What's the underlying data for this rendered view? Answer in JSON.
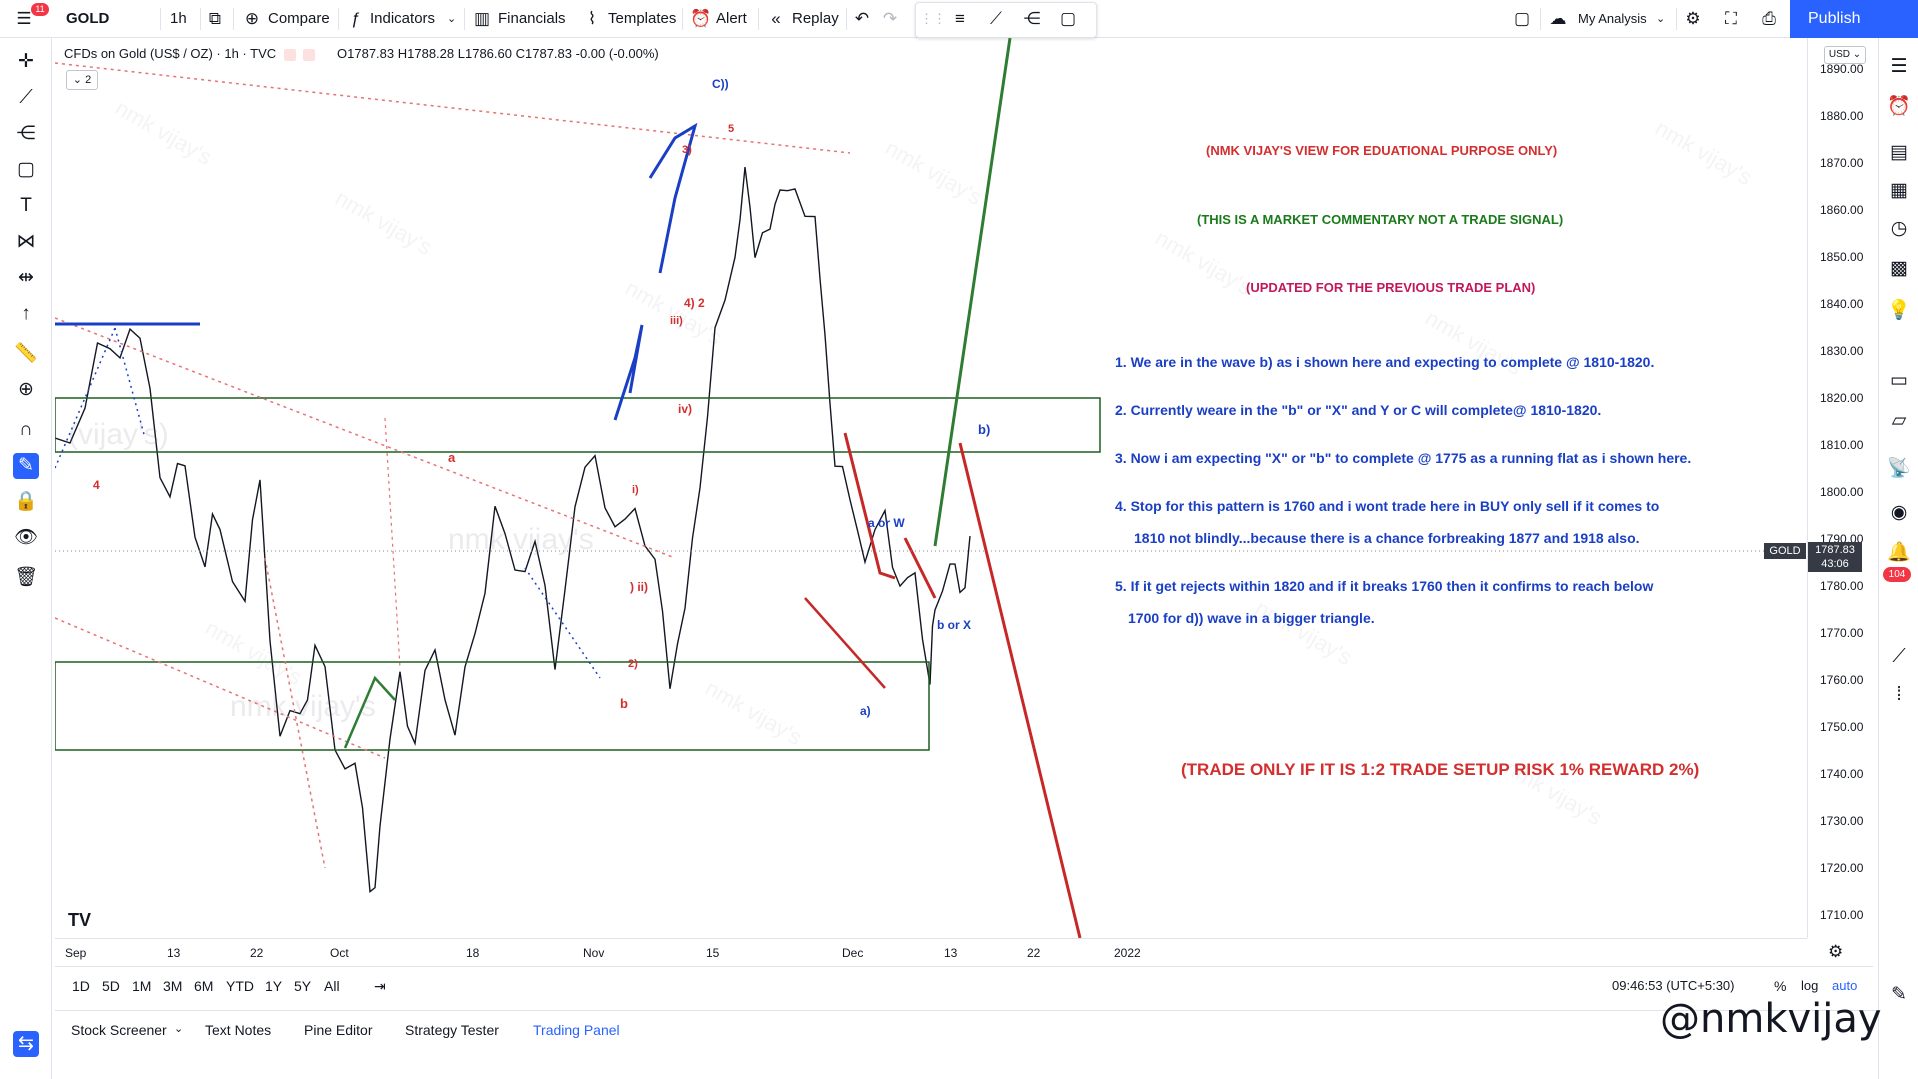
{
  "header": {
    "symbol": "GOLD",
    "interval": "1h",
    "menu_badge": "11",
    "compare_label": "Compare",
    "indicators_label": "Indicators",
    "financials_label": "Financials",
    "templates_label": "Templates",
    "alert_label": "Alert",
    "replay_label": "Replay",
    "layout_label": "My Analysis",
    "publish_label": "Publish"
  },
  "legend": {
    "title": "CFDs on Gold (US$ / OZ) · 1h · TVC",
    "open": "O1787.83",
    "high": "H1788.28",
    "low": "L1786.60",
    "close": "C1787.83",
    "change": "-0.00 (-0.00%)",
    "collapse": "2"
  },
  "price_scale": {
    "currency": "USD",
    "labels": [
      "1890.00",
      "1880.00",
      "1870.00",
      "1860.00",
      "1850.00",
      "1840.00",
      "1830.00",
      "1820.00",
      "1810.00",
      "1800.00",
      "1790.00",
      "1780.00",
      "1770.00",
      "1760.00",
      "1750.00",
      "1740.00",
      "1730.00",
      "1720.00",
      "1710.00"
    ],
    "current_symbol": "GOLD",
    "current_price": "1787.83",
    "countdown": "43:06"
  },
  "time_scale": {
    "labels": [
      "Sep",
      "13",
      "22",
      "Oct",
      "18",
      "Nov",
      "15",
      "Dec",
      "13",
      "22",
      "2022"
    ]
  },
  "range_bar": {
    "ranges": [
      "1D",
      "5D",
      "1M",
      "3M",
      "6M",
      "YTD",
      "1Y",
      "5Y",
      "All"
    ],
    "clock": "09:46:53 (UTC+5:30)",
    "percent": "%",
    "log": "log",
    "auto": "auto"
  },
  "bottom_panel": {
    "tabs": [
      "Stock Screener",
      "Text Notes",
      "Pine Editor",
      "Strategy Tester",
      "Trading Panel"
    ]
  },
  "right_toolbar": {
    "badge": "104"
  },
  "annotations": {
    "disclaimer1": "(NMK VIJAY'S VIEW FOR EDUATIONAL PURPOSE ONLY)",
    "disclaimer2": "(THIS IS A MARKET COMMENTARY NOT A TRADE SIGNAL)",
    "disclaimer3": "(UPDATED FOR THE PREVIOUS TRADE PLAN)",
    "point1": "1. We are in the wave b) as i shown here and expecting to complete @ 1810-1820.",
    "point2": "2. Currently weare in the \"b\" or \"X\" and Y or C will complete@ 1810-1820.",
    "point3": "3. Now i am expecting \"X\" or \"b\" to complete @ 1775 as a running flat as i shown here.",
    "point4a": "4. Stop for this pattern is 1760 and i wont trade here in BUY only sell if it comes to",
    "point4b": "1810 not blindly...because there is a chance forbreaking 1877 and 1918 also.",
    "point5a": "5. If it get rejects within 1820 and if it breaks 1760 then it confirms to reach below",
    "point5b": "1700 for d)) wave in a bigger triangle.",
    "trade_rule": "(TRADE ONLY IF IT IS 1:2 TRADE SETUP RISK 1% REWARD 2%)"
  },
  "wave_labels": {
    "c2": "C))",
    "w5": "5",
    "w3": "3)",
    "w4_2": "4) 2",
    "iii": "iii)",
    "iv": "iv)",
    "a": "a",
    "b": "b",
    "four": "4",
    "i": "i)",
    "ii": ") ii)",
    "two": "2)",
    "b_paren": "b)",
    "a_or_w": "a or W",
    "b_or_x": "b or X",
    "a_paren": "a)"
  },
  "watermark": {
    "text": "nmk vijay's",
    "big_handle": "@nmkvijay",
    "faint": "(vijay's)",
    "faint2": "nmk vijay's"
  },
  "colors": {
    "accent": "#2962ff",
    "green_box": "#1b5e20",
    "red_line": "#c62828",
    "blue_line": "#1a3fc4",
    "green_line": "#2e7d32",
    "red_text": "#d32f2f",
    "green_text": "#1b7a1b",
    "magenta_text": "#c2185b",
    "blue_text": "#1a3fc4"
  }
}
